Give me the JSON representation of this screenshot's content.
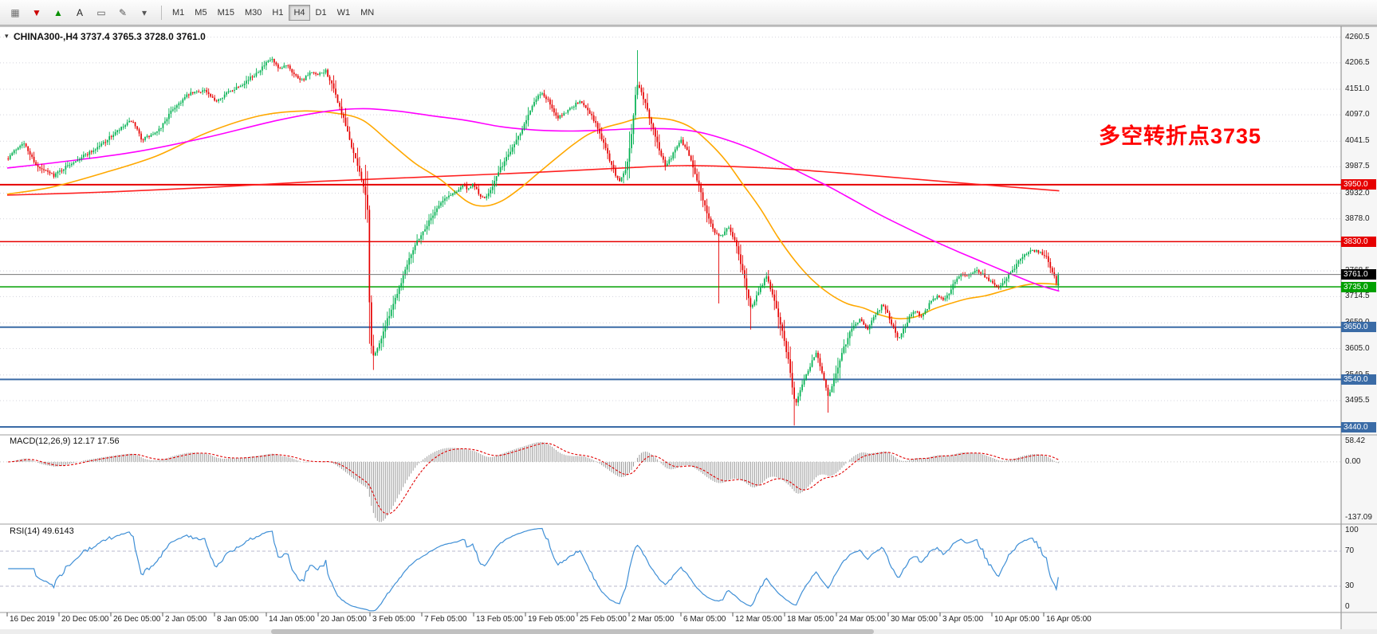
{
  "toolbar": {
    "icons": [
      {
        "name": "grid-icon",
        "glyph": "▦",
        "color": "#707070"
      },
      {
        "name": "sell-arrow-icon",
        "glyph": "▼",
        "color": "#cc0000"
      },
      {
        "name": "buy-arrow-icon",
        "glyph": "▲",
        "color": "#089000"
      },
      {
        "name": "text-label-icon",
        "glyph": "A",
        "color": "#222222"
      },
      {
        "name": "shapes-icon",
        "glyph": "▭",
        "color": "#555555"
      },
      {
        "name": "draw-tools-icon",
        "glyph": "✎",
        "color": "#555555"
      },
      {
        "name": "dropdown-caret-icon",
        "glyph": "▾",
        "color": "#555555"
      }
    ],
    "timeframes": [
      {
        "label": "M1",
        "active": false
      },
      {
        "label": "M5",
        "active": false
      },
      {
        "label": "M15",
        "active": false
      },
      {
        "label": "M30",
        "active": false
      },
      {
        "label": "H1",
        "active": false
      },
      {
        "label": "H4",
        "active": true
      },
      {
        "label": "D1",
        "active": false
      },
      {
        "label": "W1",
        "active": false
      },
      {
        "label": "MN",
        "active": false
      }
    ]
  },
  "chart": {
    "title": "CHINA300-,H4 3737.4 3765.3 3728.0 3761.0",
    "collapse_icon": "▾",
    "annotation": {
      "text": "多空转折点3735",
      "color": "#ff0000"
    }
  },
  "indicators": {
    "macd": {
      "label": "MACD(12,26,9) 12.17 17.56",
      "axis_labels": [
        "58.42",
        "0.00",
        "-137.09"
      ],
      "histogram_color": "#9a9a9a",
      "signal_color": "#e00000"
    },
    "rsi": {
      "label": "RSI(14) 49.6143",
      "axis_labels": [
        "100",
        "70",
        "30",
        "0"
      ],
      "levels": [
        70,
        30
      ],
      "line_color": "#3f8fd6"
    }
  },
  "price_axis": {
    "gridline_labels": [
      "4260.5",
      "4206.5",
      "4151.0",
      "4097.0",
      "4041.5",
      "3987.5",
      "3932.0",
      "3878.0",
      "3822.5",
      "3768.5",
      "3714.5",
      "3659.0",
      "3605.0",
      "3549.5",
      "3495.5",
      "3440.2"
    ]
  },
  "time_axis": {
    "labels": [
      "16 Dec 2019",
      "20 Dec 05:00",
      "26 Dec 05:00",
      "2 Jan 05:00",
      "8 Jan 05:00",
      "14 Jan 05:00",
      "20 Jan 05:00",
      "3 Feb 05:00",
      "7 Feb 05:00",
      "13 Feb 05:00",
      "19 Feb 05:00",
      "25 Feb 05:00",
      "2 Mar 05:00",
      "6 Mar 05:00",
      "12 Mar 05:00",
      "18 Mar 05:00",
      "24 Mar 05:00",
      "30 Mar 05:00",
      "3 Apr 05:00",
      "10 Apr 05:00",
      "16 Apr 05:00"
    ]
  },
  "chart_data": {
    "type": "candlestick",
    "symbol": "CHINA300-",
    "timeframe": "H4",
    "up_color": "#00b050",
    "down_color": "#e60000",
    "ohlc_last": {
      "open": 3737.4,
      "high": 3765.3,
      "low": 3728.0,
      "close": 3761.0
    },
    "price_range_shown": [
      3440.2,
      4260.5
    ],
    "current_price": {
      "value": 3761.0,
      "label": "3761.0",
      "color": "#000000"
    },
    "horizontal_lines": [
      {
        "price": 3950.0,
        "label": "3950.0",
        "color": "#e60000",
        "width": 2
      },
      {
        "price": 3830.0,
        "label": "3830.0",
        "color": "#e60000",
        "width": 1.5
      },
      {
        "price": 3735.0,
        "label": "3735.0",
        "color": "#00a000",
        "width": 1.5
      },
      {
        "price": 3650.0,
        "label": "3650.0",
        "color": "#3a6ba6",
        "width": 2
      },
      {
        "price": 3540.0,
        "label": "3540.0",
        "color": "#3a6ba6",
        "width": 2
      },
      {
        "price": 3440.0,
        "label": "3440.0",
        "color": "#3a6ba6",
        "width": 2
      }
    ],
    "price_path_anchors": [
      [
        0,
        4005
      ],
      [
        0.3,
        4040
      ],
      [
        0.6,
        3985
      ],
      [
        0.9,
        3970
      ],
      [
        1.3,
        4000
      ],
      [
        1.7,
        4025
      ],
      [
        2.1,
        4060
      ],
      [
        2.4,
        4085
      ],
      [
        2.6,
        4045
      ],
      [
        2.9,
        4060
      ],
      [
        3.2,
        4110
      ],
      [
        3.5,
        4140
      ],
      [
        3.8,
        4150
      ],
      [
        4,
        4125
      ],
      [
        4.2,
        4140
      ],
      [
        4.5,
        4160
      ],
      [
        4.7,
        4175
      ],
      [
        4.9,
        4195
      ],
      [
        5.1,
        4215
      ],
      [
        5.25,
        4190
      ],
      [
        5.4,
        4205
      ],
      [
        5.55,
        4180
      ],
      [
        5.7,
        4170
      ],
      [
        5.85,
        4185
      ],
      [
        6,
        4180
      ],
      [
        6.15,
        4190
      ],
      [
        6.3,
        4150
      ],
      [
        6.5,
        4085
      ],
      [
        6.7,
        4010
      ],
      [
        6.85,
        3960
      ],
      [
        6.95,
        3905
      ],
      [
        7,
        3650
      ],
      [
        7.05,
        3585
      ],
      [
        7.15,
        3605
      ],
      [
        7.3,
        3655
      ],
      [
        7.45,
        3700
      ],
      [
        7.6,
        3745
      ],
      [
        7.75,
        3795
      ],
      [
        7.9,
        3830
      ],
      [
        8.05,
        3855
      ],
      [
        8.2,
        3885
      ],
      [
        8.35,
        3910
      ],
      [
        8.5,
        3925
      ],
      [
        8.65,
        3935
      ],
      [
        8.8,
        3950
      ],
      [
        8.9,
        3938
      ],
      [
        9,
        3952
      ],
      [
        9.1,
        3930
      ],
      [
        9.2,
        3918
      ],
      [
        9.35,
        3945
      ],
      [
        9.5,
        3980
      ],
      [
        9.7,
        4020
      ],
      [
        9.9,
        4060
      ],
      [
        10.1,
        4110
      ],
      [
        10.3,
        4145
      ],
      [
        10.45,
        4125
      ],
      [
        10.6,
        4090
      ],
      [
        10.75,
        4100
      ],
      [
        10.9,
        4115
      ],
      [
        11.05,
        4125
      ],
      [
        11.2,
        4110
      ],
      [
        11.35,
        4080
      ],
      [
        11.5,
        4040
      ],
      [
        11.65,
        3995
      ],
      [
        11.8,
        3955
      ],
      [
        11.95,
        3985
      ],
      [
        12.05,
        4060
      ],
      [
        12.15,
        4165
      ],
      [
        12.25,
        4140
      ],
      [
        12.4,
        4090
      ],
      [
        12.55,
        4035
      ],
      [
        12.7,
        3990
      ],
      [
        12.85,
        4015
      ],
      [
        13,
        4045
      ],
      [
        13.15,
        4015
      ],
      [
        13.3,
        3965
      ],
      [
        13.45,
        3910
      ],
      [
        13.6,
        3860
      ],
      [
        13.75,
        3838
      ],
      [
        13.9,
        3862
      ],
      [
        14.05,
        3830
      ],
      [
        14.2,
        3765
      ],
      [
        14.35,
        3690
      ],
      [
        14.5,
        3725
      ],
      [
        14.65,
        3758
      ],
      [
        14.8,
        3705
      ],
      [
        14.95,
        3645
      ],
      [
        15.1,
        3565
      ],
      [
        15.2,
        3485
      ],
      [
        15.3,
        3520
      ],
      [
        15.45,
        3558
      ],
      [
        15.6,
        3598
      ],
      [
        15.72,
        3558
      ],
      [
        15.85,
        3502
      ],
      [
        16,
        3558
      ],
      [
        16.15,
        3608
      ],
      [
        16.3,
        3648
      ],
      [
        16.45,
        3668
      ],
      [
        16.6,
        3642
      ],
      [
        16.75,
        3678
      ],
      [
        16.9,
        3698
      ],
      [
        17.05,
        3662
      ],
      [
        17.2,
        3625
      ],
      [
        17.35,
        3658
      ],
      [
        17.5,
        3688
      ],
      [
        17.65,
        3672
      ],
      [
        17.8,
        3700
      ],
      [
        17.95,
        3718
      ],
      [
        18.1,
        3708
      ],
      [
        18.25,
        3738
      ],
      [
        18.4,
        3765
      ],
      [
        18.55,
        3758
      ],
      [
        18.7,
        3772
      ],
      [
        18.85,
        3758
      ],
      [
        19,
        3745
      ],
      [
        19.15,
        3732
      ],
      [
        19.3,
        3756
      ],
      [
        19.45,
        3778
      ],
      [
        19.6,
        3798
      ],
      [
        19.75,
        3815
      ],
      [
        19.9,
        3808
      ],
      [
        20.05,
        3798
      ],
      [
        20.15,
        3772
      ],
      [
        20.25,
        3742
      ],
      [
        20.3,
        3761
      ]
    ],
    "wick_overrides": [
      {
        "t": 12.15,
        "high": 4233
      },
      {
        "t": 15.2,
        "low": 3443
      },
      {
        "t": 7.05,
        "low": 3560
      },
      {
        "t": 15.85,
        "low": 3470
      },
      {
        "t": 14.35,
        "low": 3645
      },
      {
        "t": 13.75,
        "low": 3700
      }
    ],
    "moving_averages": [
      {
        "name": "ma-fast",
        "color": "#ffa800",
        "width": 1.6,
        "anchors": [
          [
            0,
            3930
          ],
          [
            0.87,
            3945
          ],
          [
            1.87,
            3975
          ],
          [
            2.87,
            4010
          ],
          [
            3.87,
            4060
          ],
          [
            4.87,
            4095
          ],
          [
            5.7,
            4105
          ],
          [
            6.37,
            4100
          ],
          [
            6.87,
            4085
          ],
          [
            7.37,
            4040
          ],
          [
            7.87,
            3995
          ],
          [
            8.37,
            3960
          ],
          [
            8.87,
            3915
          ],
          [
            9.2,
            3905
          ],
          [
            9.53,
            3915
          ],
          [
            9.87,
            3940
          ],
          [
            10.2,
            3970
          ],
          [
            10.53,
            4000
          ],
          [
            10.87,
            4030
          ],
          [
            11.2,
            4055
          ],
          [
            11.53,
            4070
          ],
          [
            11.87,
            4080
          ],
          [
            12.2,
            4090
          ],
          [
            12.53,
            4090
          ],
          [
            12.87,
            4085
          ],
          [
            13.2,
            4070
          ],
          [
            13.53,
            4040
          ],
          [
            13.87,
            4000
          ],
          [
            14.2,
            3950
          ],
          [
            14.53,
            3900
          ],
          [
            14.87,
            3840
          ],
          [
            15.2,
            3790
          ],
          [
            15.53,
            3750
          ],
          [
            15.87,
            3720
          ],
          [
            16.2,
            3700
          ],
          [
            16.53,
            3690
          ],
          [
            16.87,
            3675
          ],
          [
            17.2,
            3668
          ],
          [
            17.53,
            3672
          ],
          [
            17.87,
            3688
          ],
          [
            18.2,
            3700
          ],
          [
            18.53,
            3710
          ],
          [
            18.87,
            3716
          ],
          [
            19.2,
            3726
          ],
          [
            19.53,
            3736
          ],
          [
            19.87,
            3742
          ],
          [
            20.3,
            3740
          ]
        ]
      },
      {
        "name": "ma-medium",
        "color": "#ff00ff",
        "width": 1.6,
        "anchors": [
          [
            0,
            3985
          ],
          [
            1.2,
            4000
          ],
          [
            2.53,
            4020
          ],
          [
            3.87,
            4050
          ],
          [
            5.2,
            4085
          ],
          [
            6.2,
            4105
          ],
          [
            6.87,
            4110
          ],
          [
            7.53,
            4105
          ],
          [
            8.2,
            4095
          ],
          [
            8.87,
            4085
          ],
          [
            9.53,
            4072
          ],
          [
            10.2,
            4065
          ],
          [
            10.87,
            4063
          ],
          [
            11.53,
            4065
          ],
          [
            12.2,
            4068
          ],
          [
            12.87,
            4067
          ],
          [
            13.37,
            4060
          ],
          [
            13.87,
            4045
          ],
          [
            14.37,
            4025
          ],
          [
            14.87,
            4000
          ],
          [
            15.37,
            3972
          ],
          [
            15.87,
            3945
          ],
          [
            16.37,
            3915
          ],
          [
            16.87,
            3885
          ],
          [
            17.37,
            3858
          ],
          [
            17.87,
            3832
          ],
          [
            18.37,
            3808
          ],
          [
            18.87,
            3785
          ],
          [
            19.37,
            3762
          ],
          [
            19.87,
            3740
          ],
          [
            20.3,
            3726
          ]
        ]
      },
      {
        "name": "ma-slow",
        "color": "#ff2020",
        "width": 1.6,
        "anchors": [
          [
            0,
            3928
          ],
          [
            2.03,
            3935
          ],
          [
            4.03,
            3945
          ],
          [
            6.03,
            3957
          ],
          [
            8.03,
            3966
          ],
          [
            10.03,
            3975
          ],
          [
            12.03,
            3986
          ],
          [
            13.03,
            3990
          ],
          [
            14.03,
            3988
          ],
          [
            15.03,
            3983
          ],
          [
            16.03,
            3975
          ],
          [
            17.03,
            3966
          ],
          [
            18.03,
            3957
          ],
          [
            19.03,
            3948
          ],
          [
            20.3,
            3937
          ]
        ]
      }
    ]
  }
}
